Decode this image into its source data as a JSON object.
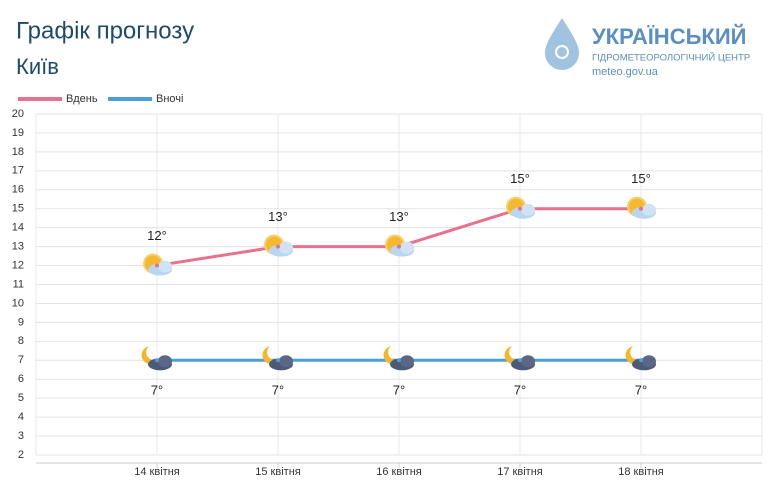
{
  "chart_data": {
    "type": "line",
    "title": "Графік прогнозу",
    "subtitle": "Київ",
    "categories": [
      "14 квітня",
      "15 квітня",
      "16 квітня",
      "17 квітня",
      "18 квітня"
    ],
    "series": [
      {
        "name": "Вдень",
        "color": "#e8718d",
        "values": [
          12,
          13,
          13,
          15,
          15
        ],
        "value_labels": [
          "12°",
          "13°",
          "13°",
          "15°",
          "15°"
        ]
      },
      {
        "name": "Вночі",
        "color": "#4a9fd8",
        "values": [
          7,
          7,
          7,
          7,
          7
        ],
        "value_labels": [
          "7°",
          "7°",
          "7°",
          "7°",
          "7°"
        ]
      }
    ],
    "ylim": [
      2,
      20
    ],
    "yticks": [
      2,
      3,
      4,
      5,
      6,
      7,
      8,
      9,
      10,
      11,
      12,
      13,
      14,
      15,
      16,
      17,
      18,
      19,
      20
    ],
    "grid": true,
    "legend": "top-left"
  },
  "logo": {
    "title": "УКРАЇНСЬКИЙ",
    "subtitle": "ГІДРОМЕТЕОРОЛОГІЧНИЙ ЦЕНТР",
    "url": "meteo.gov.ua"
  }
}
